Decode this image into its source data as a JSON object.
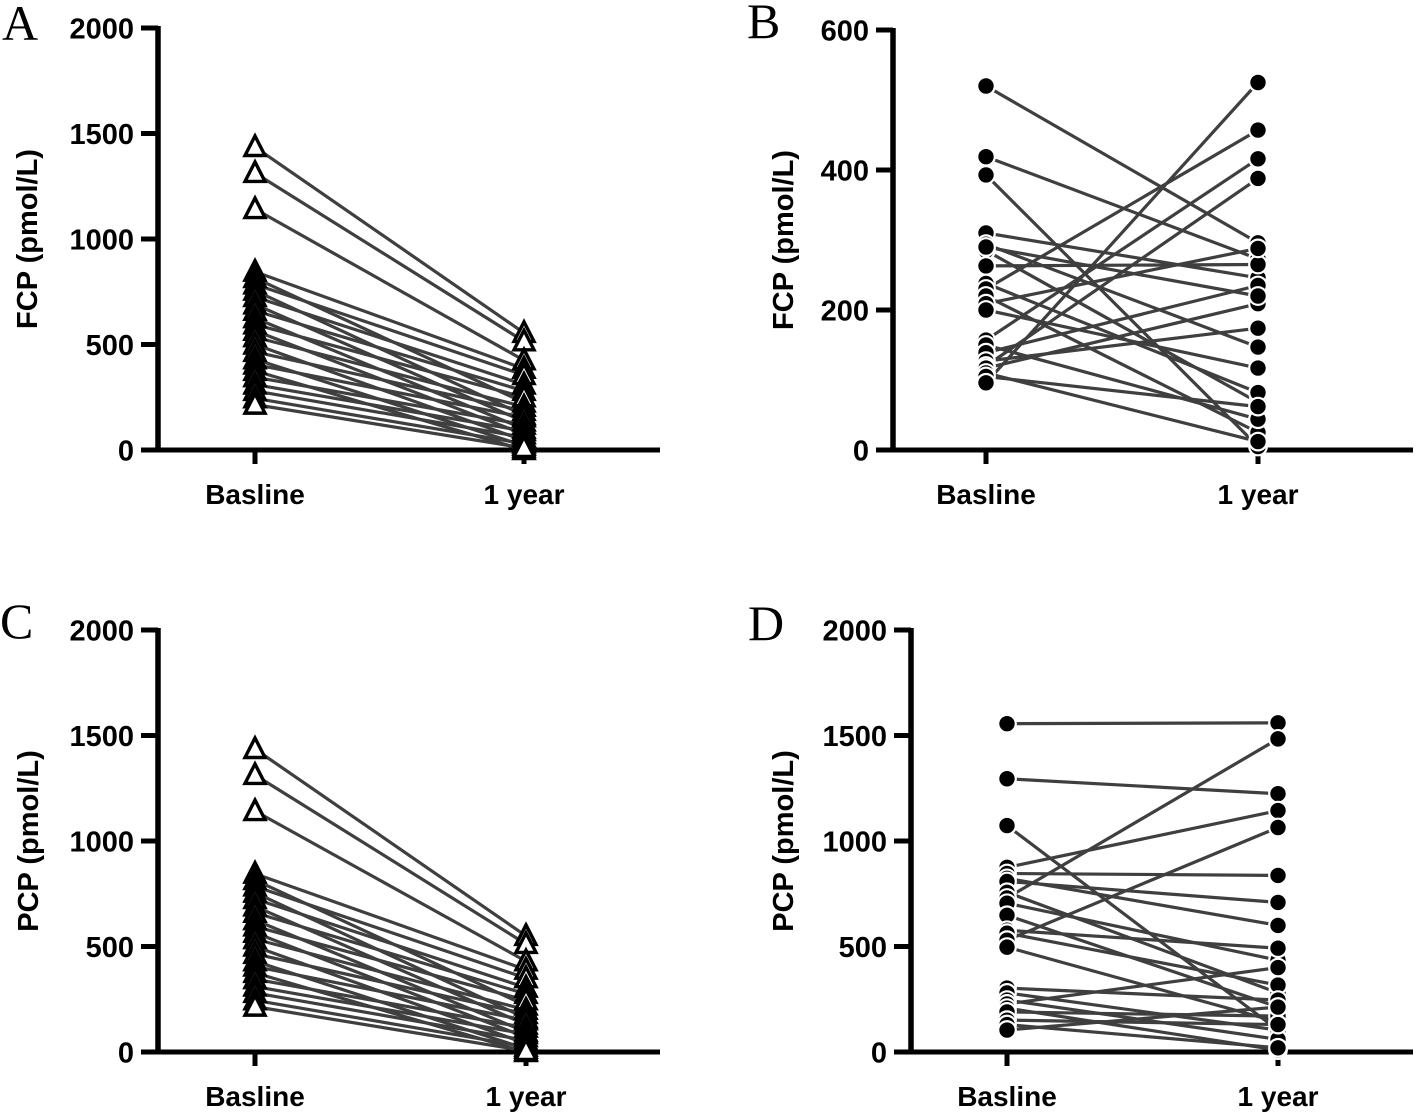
{
  "figure": {
    "description": "Four-panel paired before/after (slope) plot figure",
    "background": "#ffffff",
    "panel_letters": [
      "A",
      "B",
      "C",
      "D"
    ]
  },
  "colors": {
    "axis": "#000000",
    "text": "#000000",
    "pair_line": "#3f3f3f",
    "marker_fill_circle": "#000000",
    "marker_fill_triangle": "#ffffff",
    "marker_stroke": "#000000"
  },
  "chart_data": [
    {
      "type": "line",
      "subtype": "paired-slope-plot",
      "panel_label": "A",
      "ylabel": "FCP (pmol/L)",
      "xlabel": "",
      "categories": [
        "Basline",
        "1 year"
      ],
      "ylim": [
        0,
        2000
      ],
      "yticks": [
        0,
        500,
        1000,
        1500,
        2000
      ],
      "marker": "open-triangle",
      "legend": "none",
      "grid": false,
      "pairs_note": "each pair = [Basline value, 1 year value] in pmol/L, estimated from plot",
      "pairs": [
        [
          1436,
          555
        ],
        [
          1313,
          515
        ],
        [
          1142,
          425
        ],
        [
          845,
          385
        ],
        [
          815,
          225
        ],
        [
          785,
          355
        ],
        [
          755,
          165
        ],
        [
          725,
          310
        ],
        [
          690,
          135
        ],
        [
          660,
          280
        ],
        [
          625,
          100
        ],
        [
          595,
          250
        ],
        [
          565,
          75
        ],
        [
          535,
          205
        ],
        [
          500,
          45
        ],
        [
          465,
          185
        ],
        [
          430,
          20
        ],
        [
          405,
          155
        ],
        [
          375,
          0
        ],
        [
          345,
          120
        ],
        [
          310,
          90
        ],
        [
          280,
          60
        ],
        [
          245,
          30
        ],
        [
          215,
          10
        ]
      ]
    },
    {
      "type": "line",
      "subtype": "paired-slope-plot",
      "panel_label": "B",
      "ylabel": "FCP (pmol/L)",
      "xlabel": "",
      "categories": [
        "Basline",
        "1 year"
      ],
      "ylim": [
        0,
        600
      ],
      "yticks": [
        0,
        200,
        400,
        600
      ],
      "marker": "filled-circle",
      "legend": "none",
      "grid": false,
      "pairs_note": "each pair = [Basline value, 1 year value] in pmol/L, estimated from plot",
      "pairs": [
        [
          520,
          296
        ],
        [
          419,
          273
        ],
        [
          393,
          5
        ],
        [
          310,
          246
        ],
        [
          294,
          147
        ],
        [
          285,
          68
        ],
        [
          263,
          265
        ],
        [
          238,
          82
        ],
        [
          230,
          457
        ],
        [
          220,
          25
        ],
        [
          209,
          288
        ],
        [
          200,
          117
        ],
        [
          157,
          416
        ],
        [
          150,
          44
        ],
        [
          139,
          235
        ],
        [
          127,
          174
        ],
        [
          120,
          388
        ],
        [
          117,
          209
        ],
        [
          110,
          12
        ],
        [
          105,
          62
        ],
        [
          96,
          525
        ],
        [
          290,
          220
        ]
      ]
    },
    {
      "type": "line",
      "subtype": "paired-slope-plot",
      "panel_label": "C",
      "ylabel": "PCP (pmol/L)",
      "xlabel": "",
      "categories": [
        "Basline",
        "1 year"
      ],
      "ylim": [
        0,
        2000
      ],
      "yticks": [
        0,
        500,
        1000,
        1500,
        2000
      ],
      "marker": "open-triangle",
      "legend": "none",
      "grid": false,
      "pairs_note": "each pair = [Basline value, 1 year value] in pmol/L, estimated from plot",
      "pairs": [
        [
          1436,
          550
        ],
        [
          1313,
          512
        ],
        [
          1142,
          430
        ],
        [
          845,
          390
        ],
        [
          815,
          220
        ],
        [
          785,
          350
        ],
        [
          755,
          160
        ],
        [
          725,
          305
        ],
        [
          690,
          130
        ],
        [
          660,
          275
        ],
        [
          625,
          95
        ],
        [
          595,
          245
        ],
        [
          565,
          70
        ],
        [
          535,
          200
        ],
        [
          500,
          40
        ],
        [
          465,
          180
        ],
        [
          430,
          15
        ],
        [
          405,
          150
        ],
        [
          375,
          0
        ],
        [
          345,
          115
        ],
        [
          310,
          85
        ],
        [
          280,
          55
        ],
        [
          245,
          25
        ],
        [
          215,
          5
        ]
      ]
    },
    {
      "type": "line",
      "subtype": "paired-slope-plot",
      "panel_label": "D",
      "ylabel": "PCP (pmol/L)",
      "xlabel": "",
      "categories": [
        "Basline",
        "1 year"
      ],
      "ylim": [
        0,
        2000
      ],
      "yticks": [
        0,
        500,
        1000,
        1500,
        2000
      ],
      "marker": "filled-circle",
      "legend": "none",
      "grid": false,
      "pairs_note": "each pair = [Basline value, 1 year value] in pmol/L, estimated from plot",
      "pairs": [
        [
          1556,
          1560
        ],
        [
          1295,
          1224
        ],
        [
          1073,
          104
        ],
        [
          875,
          1144
        ],
        [
          846,
          837
        ],
        [
          823,
          600
        ],
        [
          808,
          709
        ],
        [
          757,
          280
        ],
        [
          730,
          1484
        ],
        [
          705,
          435
        ],
        [
          648,
          213
        ],
        [
          577,
          492
        ],
        [
          563,
          317
        ],
        [
          530,
          1064
        ],
        [
          497,
          142
        ],
        [
          303,
          246
        ],
        [
          280,
          104
        ],
        [
          246,
          60
        ],
        [
          228,
          400
        ],
        [
          208,
          9
        ],
        [
          190,
          170
        ],
        [
          151,
          130
        ],
        [
          130,
          20
        ],
        [
          104,
          213
        ]
      ]
    }
  ]
}
